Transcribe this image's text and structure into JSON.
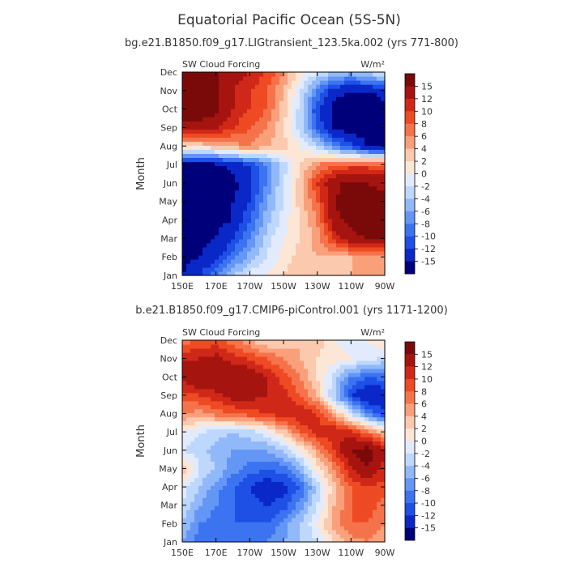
{
  "title": "Equatorial Pacific Ocean (5S-5N)",
  "colors": {
    "scale": [
      "#00007a",
      "#0a28c8",
      "#1e50e6",
      "#3c73f0",
      "#6496f5",
      "#91b9fa",
      "#bed7fc",
      "#e1ebfd",
      "#fde6d6",
      "#fbc9ad",
      "#f9a07a",
      "#f5734b",
      "#ee4a23",
      "#d02818",
      "#a5140f",
      "#7a0a0a"
    ]
  },
  "chart_data": [
    {
      "type": "heatmap",
      "title": "bg.e21.B1850.f09_g17.LIGtransient_123.5ka.002 (yrs 771-800)",
      "left_label": "SW Cloud Forcing",
      "right_label": "W/m²",
      "ylabel": "Month",
      "x_ticks": [
        "150E",
        "170E",
        "170W",
        "150W",
        "130W",
        "110W",
        "90W"
      ],
      "y_ticks": [
        "Jan",
        "Feb",
        "Mar",
        "Apr",
        "May",
        "Jun",
        "Jul",
        "Aug",
        "Sep",
        "Oct",
        "Nov",
        "Dec"
      ],
      "colorbar_labels": [
        "15",
        "12",
        "10",
        "8",
        "6",
        "4",
        "2",
        "0",
        "-2",
        "-4",
        "-6",
        "-8",
        "-10",
        "-12",
        "-15"
      ],
      "x": [
        150,
        160,
        170,
        180,
        190,
        200,
        210,
        220,
        230,
        240,
        250,
        260,
        270
      ],
      "months": [
        "Jan",
        "Feb",
        "Mar",
        "Apr",
        "May",
        "Jun",
        "Jul",
        "Aug",
        "Sep",
        "Oct",
        "Nov",
        "Dec"
      ],
      "values": [
        [
          -15,
          -12,
          -8,
          -4,
          -1,
          0,
          2,
          3,
          2,
          3,
          4,
          5,
          4
        ],
        [
          -16,
          -15,
          -13,
          -9,
          -5,
          -2,
          1,
          3,
          4,
          4,
          4,
          5,
          5
        ],
        [
          -16,
          -16,
          -15,
          -12,
          -8,
          -3,
          0,
          2,
          5,
          10,
          14,
          15,
          15
        ],
        [
          -16,
          -16,
          -16,
          -15,
          -10,
          -5,
          -1,
          2,
          6,
          14,
          16,
          17,
          16
        ],
        [
          -17,
          -17,
          -16,
          -15,
          -12,
          -6,
          -2,
          3,
          8,
          15,
          17,
          17,
          16
        ],
        [
          -17,
          -17,
          -17,
          -16,
          -13,
          -8,
          -2,
          3,
          10,
          14,
          16,
          15,
          14
        ],
        [
          -17,
          -17,
          -16,
          -14,
          -12,
          -8,
          -3,
          2,
          6,
          8,
          9,
          9,
          9
        ],
        [
          2,
          2,
          4,
          5,
          6,
          4,
          3,
          0,
          -3,
          -8,
          -11,
          -15,
          -15
        ],
        [
          14,
          14,
          12,
          10,
          8,
          6,
          2,
          -3,
          -10,
          -15,
          -17,
          -17,
          -16
        ],
        [
          17,
          17,
          16,
          12,
          10,
          8,
          3,
          -3,
          -12,
          -16,
          -17,
          -17,
          -16
        ],
        [
          17,
          17,
          16,
          12,
          10,
          8,
          4,
          -2,
          -8,
          -14,
          -15,
          -15,
          -14
        ],
        [
          17,
          17,
          15,
          14,
          12,
          10,
          6,
          1,
          -2,
          -4,
          -5,
          -3,
          -1
        ]
      ]
    },
    {
      "type": "heatmap",
      "title": "b.e21.B1850.f09_g17.CMIP6-piControl.001 (yrs 1171-1200)",
      "left_label": "SW Cloud Forcing",
      "right_label": "W/m²",
      "ylabel": "Month",
      "x_ticks": [
        "150E",
        "170E",
        "170W",
        "150W",
        "130W",
        "110W",
        "90W"
      ],
      "y_ticks": [
        "Jan",
        "Feb",
        "Mar",
        "Apr",
        "May",
        "Jun",
        "Jul",
        "Aug",
        "Sep",
        "Oct",
        "Nov",
        "Dec"
      ],
      "colorbar_labels": [
        "15",
        "12",
        "10",
        "8",
        "6",
        "4",
        "2",
        "0",
        "-2",
        "-4",
        "-6",
        "-8",
        "-10",
        "-12",
        "-15"
      ],
      "x": [
        150,
        160,
        170,
        180,
        190,
        200,
        210,
        220,
        230,
        240,
        250,
        260,
        270
      ],
      "months": [
        "Jan",
        "Feb",
        "Mar",
        "Apr",
        "May",
        "Jun",
        "Jul",
        "Aug",
        "Sep",
        "Oct",
        "Nov",
        "Dec"
      ],
      "values": [
        [
          -6,
          -9,
          -9,
          -8,
          -9,
          -8,
          -6,
          -4,
          -2,
          2,
          5,
          6,
          4
        ],
        [
          -4,
          -8,
          -9,
          -10,
          -10,
          -10,
          -7,
          -4,
          0,
          5,
          8,
          8,
          6
        ],
        [
          -2,
          -6,
          -8,
          -10,
          -11,
          -12,
          -11,
          -7,
          -2,
          4,
          8,
          9,
          7
        ],
        [
          -1,
          -4,
          -7,
          -10,
          -12,
          -14,
          -13,
          -10,
          -3,
          3,
          8,
          10,
          9
        ],
        [
          4,
          -2,
          -4,
          -7,
          -9,
          -10,
          -9,
          -5,
          1,
          6,
          12,
          15,
          11
        ],
        [
          -2,
          -3,
          -5,
          -6,
          -6,
          -6,
          -4,
          0,
          5,
          10,
          15,
          17,
          12
        ],
        [
          0,
          -2,
          -3,
          -4,
          -3,
          -1,
          3,
          8,
          11,
          12,
          11,
          7,
          3
        ],
        [
          6,
          5,
          7,
          8,
          9,
          10,
          11,
          12,
          10,
          5,
          -2,
          -8,
          -12
        ],
        [
          9,
          10,
          11,
          13,
          13,
          12,
          11,
          8,
          4,
          -4,
          -12,
          -15,
          -14
        ],
        [
          13,
          15,
          15,
          15,
          14,
          12,
          9,
          6,
          2,
          -3,
          -8,
          -10,
          -9
        ],
        [
          12,
          12,
          13,
          11,
          10,
          8,
          6,
          4,
          2,
          1,
          0,
          -1,
          -3
        ],
        [
          7,
          8,
          9,
          7,
          4,
          2,
          3,
          4,
          3,
          0,
          -1,
          0,
          2
        ]
      ]
    }
  ]
}
